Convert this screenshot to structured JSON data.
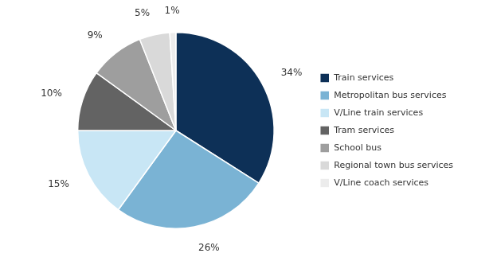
{
  "chart_data": {
    "type": "pie",
    "categories": [
      "Train services",
      "Metropolitan bus services",
      "V/Line train services",
      "Tram services",
      "School bus",
      "Regional town bus services",
      "V/Line coach services"
    ],
    "values": [
      34,
      26,
      15,
      10,
      9,
      5,
      1
    ],
    "value_labels": [
      "34%",
      "26%",
      "15%",
      "10%",
      "9%",
      "5%",
      "1%"
    ],
    "colors": [
      "#0d3057",
      "#7ab3d4",
      "#c8e6f5",
      "#636363",
      "#9e9e9e",
      "#d9d9d9",
      "#ececec"
    ],
    "data_labels": true,
    "legend": "right"
  }
}
